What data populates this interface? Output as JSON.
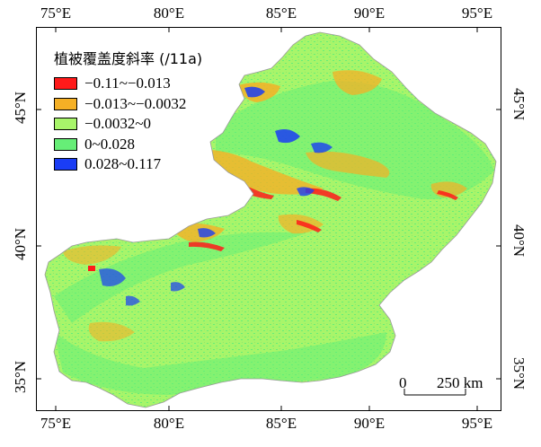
{
  "axes": {
    "top_labels": [
      "75°E",
      "80°E",
      "85°E",
      "90°E",
      "95°E"
    ],
    "bottom_labels": [
      "75°E",
      "80°E",
      "85°E",
      "90°E",
      "95°E"
    ],
    "left_labels": [
      "45°N",
      "40°N",
      "35°N"
    ],
    "right_labels": [
      "45°N",
      "40°N",
      "35°N"
    ],
    "lon_ticks": [
      75,
      80,
      85,
      90,
      95
    ],
    "lat_ticks": [
      45,
      40,
      35
    ]
  },
  "legend": {
    "title": "植被覆盖度斜率 (/11a)",
    "items": [
      {
        "label": "−0.11~−0.013",
        "color": "#ff1a1a"
      },
      {
        "label": "−0.013~−0.0032",
        "color": "#f5b025"
      },
      {
        "label": "−0.0032~0",
        "color": "#a8f56a"
      },
      {
        "label": "0~0.028",
        "color": "#66ee77"
      },
      {
        "label": "0.028~0.117",
        "color": "#1a3df5"
      }
    ]
  },
  "scale_bar": {
    "zero_label": "0",
    "distance_label": "250 km"
  },
  "colors": {
    "base_green": "#a8f56a",
    "mid_green": "#66ee77",
    "orange": "#f5b025",
    "red": "#ff1a1a",
    "blue": "#1a3df5"
  }
}
